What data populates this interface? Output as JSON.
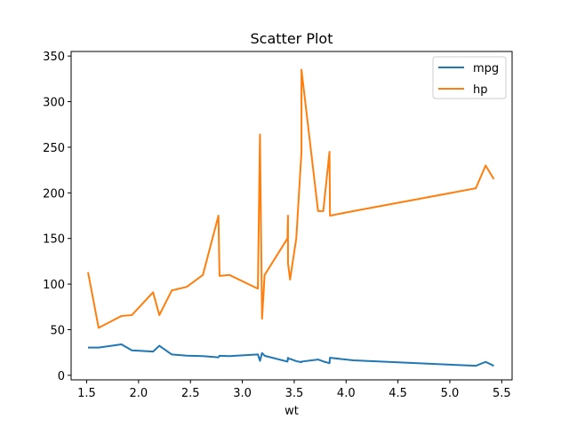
{
  "chart_data": {
    "type": "line",
    "title": "Scatter Plot",
    "xlabel": "wt",
    "ylabel": "",
    "xlim": [
      1.35,
      5.6
    ],
    "ylim": [
      -5,
      355
    ],
    "xticks": [
      "1.5",
      "2.0",
      "2.5",
      "3.0",
      "3.5",
      "4.0",
      "4.5",
      "5.0",
      "5.5"
    ],
    "yticks": [
      "0",
      "50",
      "100",
      "150",
      "200",
      "250",
      "300",
      "350"
    ],
    "grid": false,
    "legend_position": "top-right",
    "series": [
      {
        "name": "mpg",
        "color": "#1f77b4",
        "points": [
          [
            1.513,
            30.4
          ],
          [
            1.615,
            30.4
          ],
          [
            1.835,
            33.9
          ],
          [
            1.935,
            27.3
          ],
          [
            2.14,
            26.0
          ],
          [
            2.2,
            32.4
          ],
          [
            2.32,
            22.8
          ],
          [
            2.465,
            21.5
          ],
          [
            2.62,
            21.0
          ],
          [
            2.77,
            19.7
          ],
          [
            2.78,
            21.4
          ],
          [
            2.875,
            21.0
          ],
          [
            3.15,
            22.8
          ],
          [
            3.17,
            15.8
          ],
          [
            3.19,
            24.4
          ],
          [
            3.215,
            21.4
          ],
          [
            3.435,
            15.0
          ],
          [
            3.44,
            19.2
          ],
          [
            3.44,
            18.7
          ],
          [
            3.44,
            17.8
          ],
          [
            3.46,
            18.1
          ],
          [
            3.52,
            15.5
          ],
          [
            3.57,
            14.3
          ],
          [
            3.57,
            15.0
          ],
          [
            3.73,
            17.3
          ],
          [
            3.78,
            15.2
          ],
          [
            3.84,
            13.3
          ],
          [
            3.845,
            19.2
          ],
          [
            4.07,
            16.4
          ],
          [
            5.25,
            10.4
          ],
          [
            5.345,
            14.7
          ],
          [
            5.424,
            10.4
          ]
        ]
      },
      {
        "name": "hp",
        "color": "#ff7f0e",
        "points": [
          [
            1.513,
            113
          ],
          [
            1.615,
            52
          ],
          [
            1.835,
            65
          ],
          [
            1.935,
            66
          ],
          [
            2.14,
            91
          ],
          [
            2.2,
            66
          ],
          [
            2.32,
            93
          ],
          [
            2.465,
            97
          ],
          [
            2.62,
            110
          ],
          [
            2.77,
            175
          ],
          [
            2.78,
            109
          ],
          [
            2.875,
            110
          ],
          [
            3.15,
            95
          ],
          [
            3.17,
            264
          ],
          [
            3.19,
            62
          ],
          [
            3.215,
            110
          ],
          [
            3.435,
            150
          ],
          [
            3.44,
            175
          ],
          [
            3.44,
            123
          ],
          [
            3.44,
            123
          ],
          [
            3.46,
            105
          ],
          [
            3.52,
            150
          ],
          [
            3.57,
            245
          ],
          [
            3.57,
            335
          ],
          [
            3.73,
            180
          ],
          [
            3.78,
            180
          ],
          [
            3.84,
            245
          ],
          [
            3.845,
            175
          ],
          [
            4.07,
            180
          ],
          [
            5.25,
            205
          ],
          [
            5.345,
            230
          ],
          [
            5.424,
            215
          ]
        ]
      }
    ]
  }
}
